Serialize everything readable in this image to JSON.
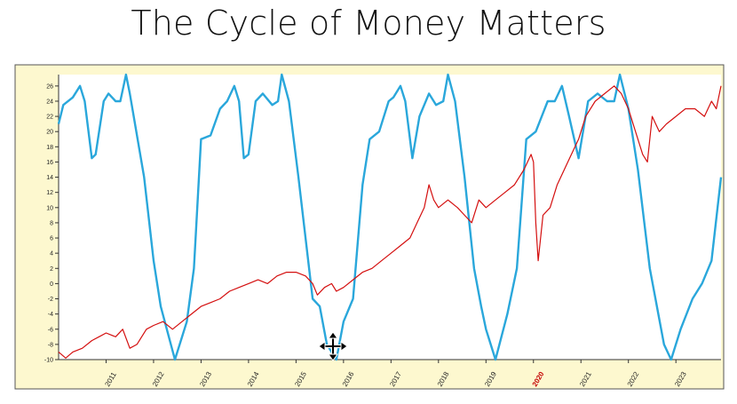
{
  "slide": {
    "title": "The Cycle of Money Matters"
  },
  "colors": {
    "frame_bg": "#fdf8cf",
    "plot_bg": "#ffffff",
    "cycle": "#2aa7db",
    "price": "#d40f0f",
    "highlight_tick": "#c40000"
  },
  "icons": {
    "cursor": "move-cursor-icon"
  },
  "chart_data": {
    "type": "line",
    "title": "The Cycle of Money Matters",
    "xlabel": "",
    "ylabel": "",
    "xlim": [
      2010.0,
      2023.95
    ],
    "ylim": [
      -10,
      27.5
    ],
    "grid": false,
    "legend": "none",
    "y_ticks": [
      26,
      24,
      22,
      20,
      18,
      16,
      14,
      12,
      10,
      8,
      6,
      4,
      2,
      0,
      -2,
      -4,
      -6,
      -8,
      -10
    ],
    "x_ticks": [
      {
        "x": 2011,
        "label": "2011"
      },
      {
        "x": 2012,
        "label": "2012"
      },
      {
        "x": 2013,
        "label": "2013"
      },
      {
        "x": 2014,
        "label": "2014"
      },
      {
        "x": 2015,
        "label": "2015"
      },
      {
        "x": 2016,
        "label": "2016"
      },
      {
        "x": 2017,
        "label": "2017"
      },
      {
        "x": 2018,
        "label": "2018"
      },
      {
        "x": 2019,
        "label": "2019"
      },
      {
        "x": 2020,
        "label": "2020",
        "highlight": true
      },
      {
        "x": 2021,
        "label": "2021"
      },
      {
        "x": 2022,
        "label": "2022"
      },
      {
        "x": 2023,
        "label": "2023"
      }
    ],
    "series": [
      {
        "color": "#2aa7db",
        "points": [
          [
            2010.0,
            21
          ],
          [
            2010.1,
            23.5
          ],
          [
            2010.3,
            24.5
          ],
          [
            2010.45,
            26
          ],
          [
            2010.55,
            24
          ],
          [
            2010.7,
            16.5
          ],
          [
            2010.78,
            17
          ],
          [
            2010.95,
            24
          ],
          [
            2011.05,
            25
          ],
          [
            2011.2,
            24
          ],
          [
            2011.3,
            24
          ],
          [
            2011.42,
            27.5
          ],
          [
            2011.5,
            25
          ],
          [
            2011.8,
            14
          ],
          [
            2012.0,
            3
          ],
          [
            2012.15,
            -3
          ],
          [
            2012.45,
            -10
          ],
          [
            2012.7,
            -5
          ],
          [
            2012.85,
            2
          ],
          [
            2013.0,
            19
          ],
          [
            2013.2,
            19.5
          ],
          [
            2013.4,
            23
          ],
          [
            2013.55,
            24
          ],
          [
            2013.7,
            26
          ],
          [
            2013.8,
            24
          ],
          [
            2013.9,
            16.5
          ],
          [
            2014.0,
            17
          ],
          [
            2014.15,
            24
          ],
          [
            2014.3,
            25
          ],
          [
            2014.5,
            23.5
          ],
          [
            2014.62,
            24
          ],
          [
            2014.7,
            27.5
          ],
          [
            2014.85,
            24
          ],
          [
            2015.05,
            14
          ],
          [
            2015.35,
            -2
          ],
          [
            2015.5,
            -3
          ],
          [
            2015.65,
            -8
          ],
          [
            2015.85,
            -10
          ],
          [
            2016.0,
            -5
          ],
          [
            2016.2,
            -2
          ],
          [
            2016.4,
            13
          ],
          [
            2016.55,
            19
          ],
          [
            2016.75,
            20
          ],
          [
            2016.95,
            24
          ],
          [
            2017.05,
            24.5
          ],
          [
            2017.2,
            26
          ],
          [
            2017.3,
            24
          ],
          [
            2017.45,
            16.5
          ],
          [
            2017.6,
            22
          ],
          [
            2017.8,
            25
          ],
          [
            2017.95,
            23.5
          ],
          [
            2018.1,
            24
          ],
          [
            2018.2,
            27.5
          ],
          [
            2018.35,
            24
          ],
          [
            2018.55,
            14
          ],
          [
            2018.75,
            2
          ],
          [
            2018.9,
            -3
          ],
          [
            2019.0,
            -6
          ],
          [
            2019.2,
            -10
          ],
          [
            2019.45,
            -4
          ],
          [
            2019.65,
            2
          ],
          [
            2019.85,
            19
          ],
          [
            2020.05,
            20
          ],
          [
            2020.3,
            24
          ],
          [
            2020.45,
            24
          ],
          [
            2020.6,
            26
          ],
          [
            2020.75,
            22
          ],
          [
            2020.95,
            16.5
          ],
          [
            2021.15,
            24
          ],
          [
            2021.35,
            25
          ],
          [
            2021.55,
            24
          ],
          [
            2021.7,
            24
          ],
          [
            2021.82,
            27.5
          ],
          [
            2022.0,
            23
          ],
          [
            2022.2,
            15
          ],
          [
            2022.45,
            2
          ],
          [
            2022.6,
            -3
          ],
          [
            2022.75,
            -8
          ],
          [
            2022.9,
            -10
          ],
          [
            2023.1,
            -6
          ],
          [
            2023.35,
            -2
          ],
          [
            2023.55,
            0
          ],
          [
            2023.75,
            3
          ],
          [
            2023.95,
            14
          ]
        ]
      },
      {
        "color": "#d40f0f",
        "points": [
          [
            2010.0,
            -9
          ],
          [
            2010.15,
            -9.8
          ],
          [
            2010.3,
            -9
          ],
          [
            2010.5,
            -8.5
          ],
          [
            2010.7,
            -7.5
          ],
          [
            2010.85,
            -7
          ],
          [
            2011.0,
            -6.5
          ],
          [
            2011.2,
            -7
          ],
          [
            2011.35,
            -6
          ],
          [
            2011.5,
            -8.5
          ],
          [
            2011.65,
            -8
          ],
          [
            2011.85,
            -6
          ],
          [
            2012.0,
            -5.5
          ],
          [
            2012.2,
            -5
          ],
          [
            2012.4,
            -6
          ],
          [
            2012.6,
            -5
          ],
          [
            2012.8,
            -4
          ],
          [
            2013.0,
            -3
          ],
          [
            2013.2,
            -2.5
          ],
          [
            2013.4,
            -2
          ],
          [
            2013.6,
            -1
          ],
          [
            2013.8,
            -0.5
          ],
          [
            2014.0,
            0
          ],
          [
            2014.2,
            0.5
          ],
          [
            2014.4,
            0
          ],
          [
            2014.6,
            1
          ],
          [
            2014.8,
            1.5
          ],
          [
            2015.0,
            1.5
          ],
          [
            2015.2,
            1
          ],
          [
            2015.35,
            0
          ],
          [
            2015.45,
            -1.5
          ],
          [
            2015.6,
            -0.5
          ],
          [
            2015.75,
            0
          ],
          [
            2015.85,
            -1
          ],
          [
            2016.0,
            -0.5
          ],
          [
            2016.2,
            0.5
          ],
          [
            2016.4,
            1.5
          ],
          [
            2016.6,
            2
          ],
          [
            2016.8,
            3
          ],
          [
            2017.0,
            4
          ],
          [
            2017.2,
            5
          ],
          [
            2017.4,
            6
          ],
          [
            2017.55,
            8
          ],
          [
            2017.7,
            10
          ],
          [
            2017.8,
            13
          ],
          [
            2017.9,
            11
          ],
          [
            2018.0,
            10
          ],
          [
            2018.2,
            11
          ],
          [
            2018.4,
            10
          ],
          [
            2018.55,
            9
          ],
          [
            2018.7,
            8
          ],
          [
            2018.85,
            11
          ],
          [
            2019.0,
            10
          ],
          [
            2019.2,
            11
          ],
          [
            2019.4,
            12
          ],
          [
            2019.6,
            13
          ],
          [
            2019.8,
            15
          ],
          [
            2019.95,
            17
          ],
          [
            2020.0,
            16
          ],
          [
            2020.05,
            8
          ],
          [
            2020.1,
            3
          ],
          [
            2020.2,
            9
          ],
          [
            2020.35,
            10
          ],
          [
            2020.5,
            13
          ],
          [
            2020.65,
            15
          ],
          [
            2020.8,
            17
          ],
          [
            2020.95,
            19
          ],
          [
            2021.1,
            22
          ],
          [
            2021.3,
            24
          ],
          [
            2021.5,
            25
          ],
          [
            2021.7,
            26
          ],
          [
            2021.85,
            25
          ],
          [
            2022.0,
            23
          ],
          [
            2022.15,
            20
          ],
          [
            2022.3,
            17
          ],
          [
            2022.4,
            16
          ],
          [
            2022.5,
            22
          ],
          [
            2022.65,
            20
          ],
          [
            2022.8,
            21
          ],
          [
            2023.0,
            22
          ],
          [
            2023.2,
            23
          ],
          [
            2023.4,
            23
          ],
          [
            2023.6,
            22
          ],
          [
            2023.75,
            24
          ],
          [
            2023.85,
            23
          ],
          [
            2023.95,
            26
          ]
        ]
      }
    ]
  }
}
